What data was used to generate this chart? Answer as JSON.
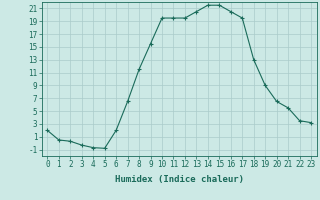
{
  "x": [
    0,
    1,
    2,
    3,
    4,
    5,
    6,
    7,
    8,
    9,
    10,
    11,
    12,
    13,
    14,
    15,
    16,
    17,
    18,
    19,
    20,
    21,
    22,
    23
  ],
  "y": [
    2,
    0.5,
    0.3,
    -0.3,
    -0.7,
    -0.8,
    2.0,
    6.5,
    11.5,
    15.5,
    19.5,
    19.5,
    19.5,
    20.5,
    21.5,
    21.5,
    20.5,
    19.5,
    13.0,
    9.0,
    6.5,
    5.5,
    3.5,
    3.2
  ],
  "line_color": "#1a6b5a",
  "marker": "+",
  "marker_size": 3,
  "marker_linewidth": 0.8,
  "line_width": 0.8,
  "background_color": "#cce9e5",
  "grid_color": "#aaccca",
  "xlabel": "Humidex (Indice chaleur)",
  "ylim": [
    -2,
    22
  ],
  "xlim": [
    -0.5,
    23.5
  ],
  "yticks": [
    -1,
    1,
    3,
    5,
    7,
    9,
    11,
    13,
    15,
    17,
    19,
    21
  ],
  "xticks": [
    0,
    1,
    2,
    3,
    4,
    5,
    6,
    7,
    8,
    9,
    10,
    11,
    12,
    13,
    14,
    15,
    16,
    17,
    18,
    19,
    20,
    21,
    22,
    23
  ],
  "xtick_labels": [
    "0",
    "1",
    "2",
    "3",
    "4",
    "5",
    "6",
    "7",
    "8",
    "9",
    "10",
    "11",
    "12",
    "13",
    "14",
    "15",
    "16",
    "17",
    "18",
    "19",
    "20",
    "21",
    "22",
    "23"
  ],
  "tick_fontsize": 5.5,
  "xlabel_fontsize": 6.5
}
